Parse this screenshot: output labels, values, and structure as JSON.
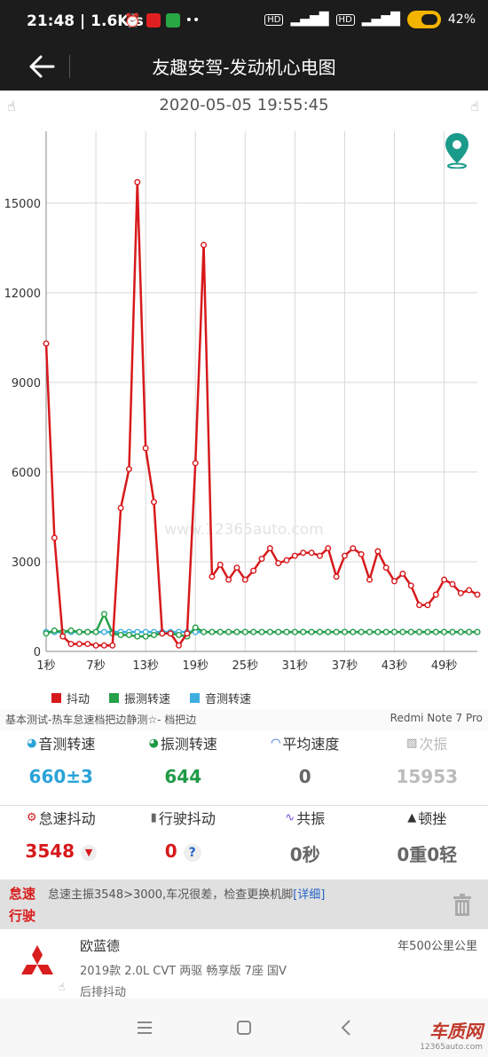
{
  "status_bar": {
    "time": "21:48",
    "speed": "1.6K/s",
    "battery": "42"
  },
  "header": {
    "title": "友趣安驾-发动机心电图"
  },
  "timestamp": "2020-05-05 19:55:45",
  "watermark_center": "www.12365auto.com",
  "chart_data": {
    "type": "line",
    "title": "",
    "xlabel": "",
    "ylabel": "",
    "ylim": [
      0,
      17400
    ],
    "yticks": [
      0,
      3000,
      6000,
      9000,
      12000,
      15000
    ],
    "x_tick_labels": [
      "1秒",
      "7秒",
      "13秒",
      "19秒",
      "25秒",
      "31秒",
      "37秒",
      "43秒",
      "49秒"
    ],
    "x": [
      1,
      2,
      3,
      4,
      5,
      6,
      7,
      8,
      9,
      10,
      11,
      12,
      13,
      14,
      15,
      16,
      17,
      18,
      19,
      20,
      21,
      22,
      23,
      24,
      25,
      26,
      27,
      28,
      29,
      30,
      31,
      32,
      33,
      34,
      35,
      36,
      37,
      38,
      39,
      40,
      41,
      42,
      43,
      44,
      45,
      46,
      47,
      48,
      49,
      50,
      51,
      52,
      53
    ],
    "series": [
      {
        "name": "抖动",
        "color": "#d7191c",
        "values": [
          10300,
          3800,
          500,
          250,
          250,
          250,
          200,
          200,
          200,
          4800,
          6100,
          15700,
          6800,
          5000,
          600,
          600,
          200,
          600,
          6300,
          13600,
          2500,
          2900,
          2400,
          2800,
          2400,
          2700,
          3100,
          3450,
          2950,
          3050,
          3200,
          3300,
          3300,
          3200,
          3450,
          2500,
          3200,
          3450,
          3250,
          2400,
          3350,
          2800,
          2350,
          2600,
          2200,
          1550,
          1550,
          1900,
          2400,
          2250,
          1950,
          2050,
          1900
        ]
      },
      {
        "name": "振测转速",
        "color": "#27a04a",
        "values": [
          600,
          700,
          650,
          700,
          650,
          650,
          650,
          1250,
          600,
          550,
          550,
          500,
          500,
          550,
          600,
          600,
          550,
          500,
          800,
          650,
          650,
          650,
          650,
          650,
          650,
          650,
          650,
          650,
          650,
          650,
          650,
          650,
          650,
          650,
          650,
          650,
          650,
          650,
          650,
          650,
          650,
          650,
          650,
          650,
          650,
          650,
          650,
          650,
          650,
          650,
          650,
          650,
          650
        ]
      },
      {
        "name": "音测转速",
        "color": "#3eaee0",
        "values": [
          650,
          650,
          650,
          650,
          650,
          650,
          650,
          650,
          650,
          650,
          650,
          650,
          650,
          650,
          650,
          650,
          650,
          650,
          650,
          650,
          650,
          650,
          650,
          650,
          650,
          650,
          650,
          650,
          650,
          650,
          650,
          650,
          650,
          650,
          650,
          650,
          650,
          650,
          650,
          650,
          650,
          650,
          650,
          650,
          650,
          650,
          650,
          650,
          650,
          650,
          650,
          650,
          650
        ]
      }
    ],
    "grid": true,
    "legend": "bottom-left"
  },
  "info": {
    "test_desc": "基本测试-热车怠速档把边静测☆- 档把边",
    "device": "Redmi Note 7 Pro"
  },
  "metrics": {
    "row1": [
      {
        "label": "音测转速",
        "value": "660±3",
        "color": "#2aa3d8"
      },
      {
        "label": "振测转速",
        "value": "644",
        "color": "#1f9a46"
      },
      {
        "label": "平均速度",
        "value": "0",
        "color": "#666666"
      },
      {
        "label": "次振",
        "value": "15953",
        "color": "#bbbbbb"
      }
    ],
    "row2": [
      {
        "label": "怠速抖动",
        "value": "3548",
        "color": "#d7191c"
      },
      {
        "label": "行驶抖动",
        "value": "0",
        "color": "#d7191c",
        "help": "?"
      },
      {
        "label": "共振",
        "value": "0秒",
        "color": "#666666"
      },
      {
        "label": "顿挫",
        "value": "0重0轻",
        "color": "#666666"
      }
    ]
  },
  "alert": {
    "tag1": "怠速",
    "tag2": "行驶",
    "message": "怠速主振3548>3000,车况很差，检查更换机脚",
    "detail": "[详细]"
  },
  "car": {
    "brand": "欧蓝德",
    "model": "2019款 2.0L CVT 两驱 畅享版 7座 国V",
    "symptom": "后排抖动",
    "mileage": "年500公里公里"
  },
  "watermark": {
    "brand": "车质网",
    "url": "12365auto.com"
  }
}
